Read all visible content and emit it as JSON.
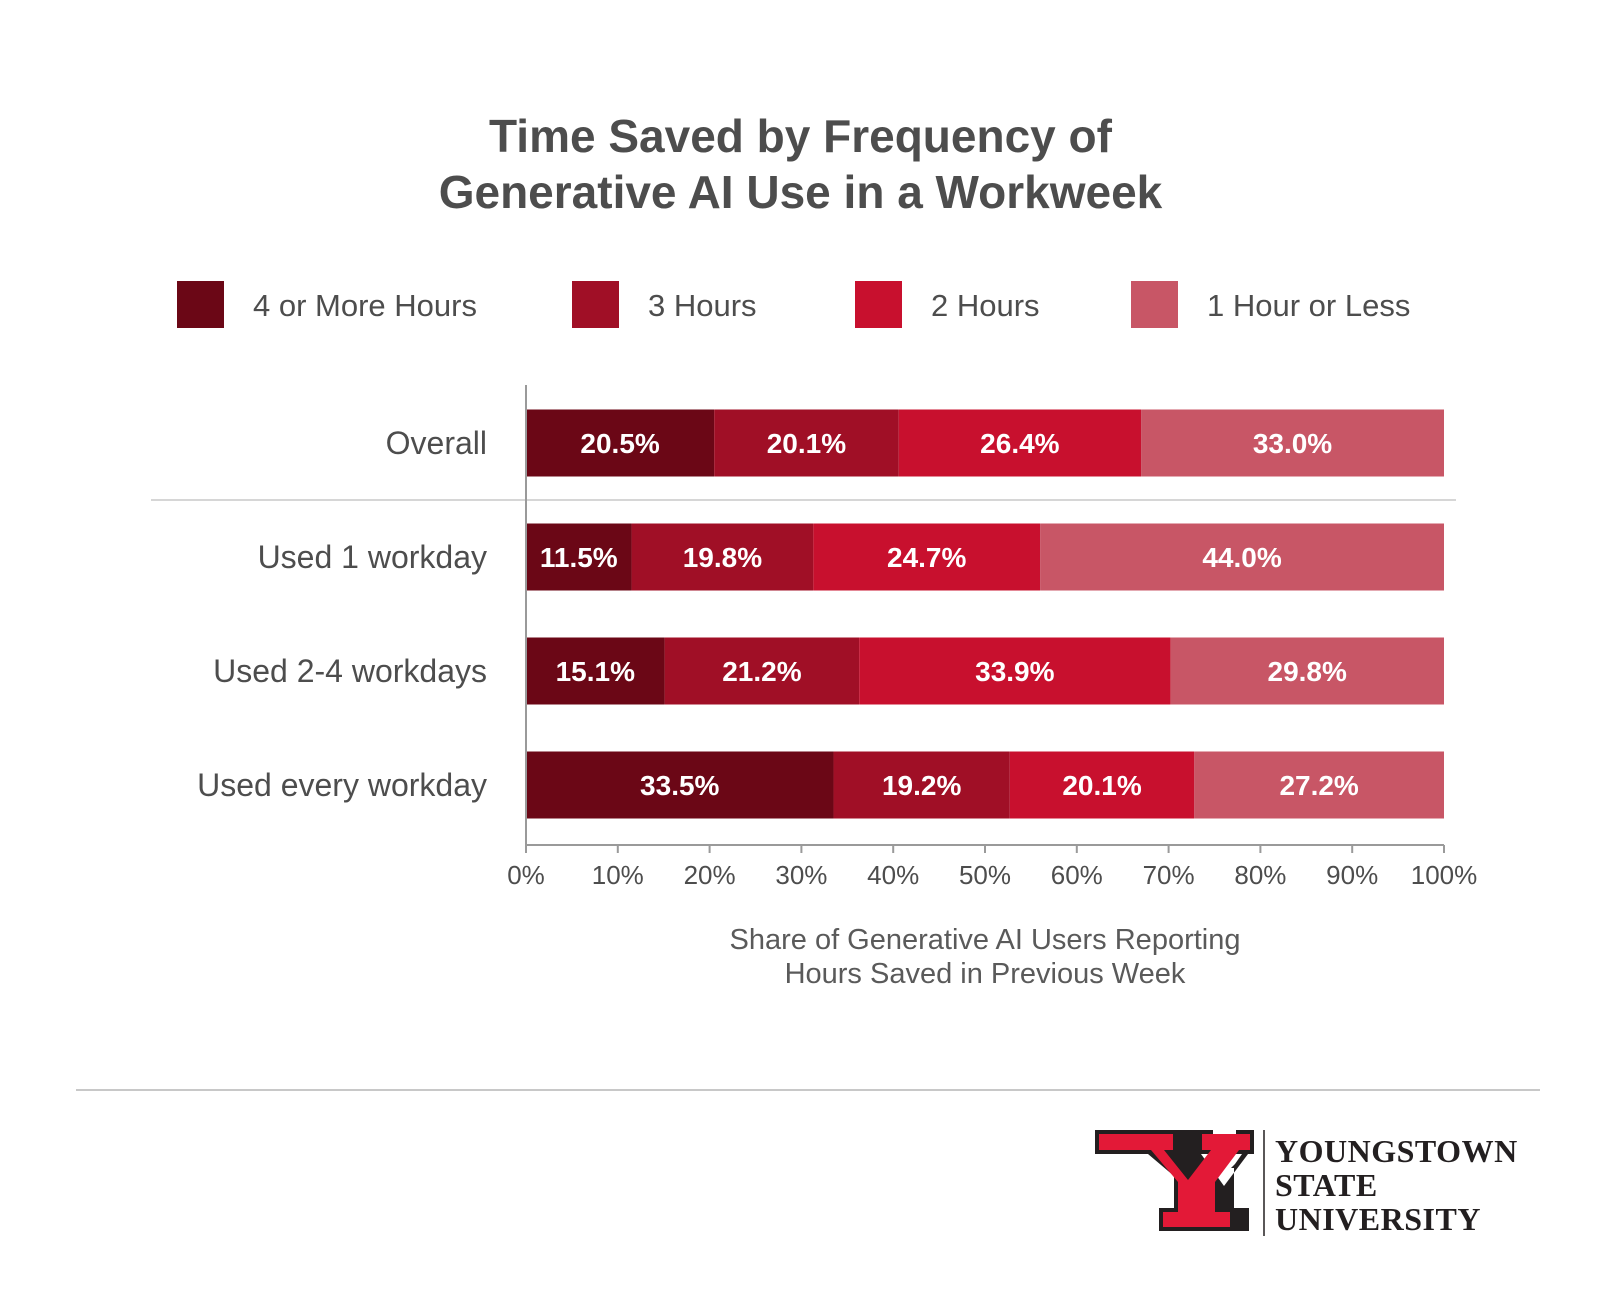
{
  "chart_data": {
    "type": "bar",
    "orientation": "horizontal",
    "stacked": true,
    "title_lines": [
      "Time Saved by Frequency of",
      "Generative AI Use in a Workweek"
    ],
    "categories": [
      "Overall",
      "Used 1 workday",
      "Used 2-4 workdays",
      "Used every workday"
    ],
    "series": [
      {
        "name": "4 or More Hours",
        "color": "#6b0716",
        "values": [
          20.5,
          11.5,
          15.1,
          33.5
        ]
      },
      {
        "name": "3 Hours",
        "color": "#a00f26",
        "values": [
          20.1,
          19.8,
          21.2,
          19.2
        ]
      },
      {
        "name": "2 Hours",
        "color": "#c8102e",
        "values": [
          26.4,
          24.7,
          33.9,
          20.1
        ]
      },
      {
        "name": "1 Hour or Less",
        "color": "#c85666",
        "values": [
          33.0,
          44.0,
          29.8,
          27.2
        ]
      }
    ],
    "xlim": [
      0,
      100
    ],
    "xticks": [
      "0%",
      "10%",
      "20%",
      "30%",
      "40%",
      "50%",
      "60%",
      "70%",
      "80%",
      "90%",
      "100%"
    ],
    "xlabel_lines": [
      "Share of Generative AI Users Reporting",
      "Hours Saved in Previous Week"
    ],
    "legend_position": "top",
    "value_format": "percent-1-decimal"
  },
  "logo": {
    "lines": [
      "YOUNGSTOWN",
      "STATE",
      "UNIVERSITY"
    ],
    "primary_color": "#e31937",
    "outline_color": "#231f20"
  }
}
